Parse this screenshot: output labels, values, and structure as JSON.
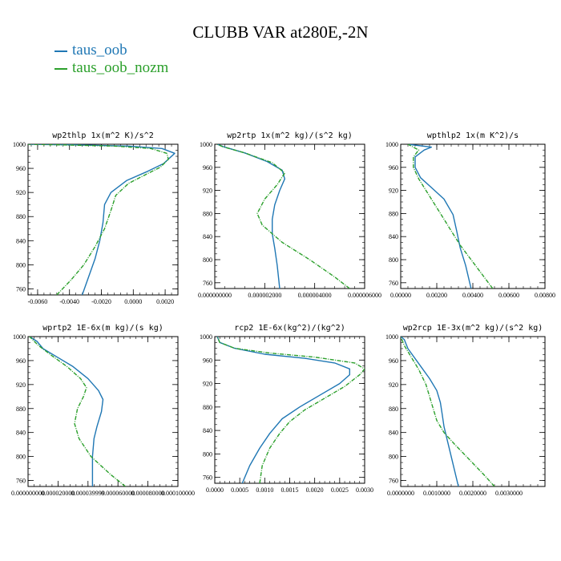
{
  "title": "CLUBB VAR at280E,-2N",
  "legend": [
    {
      "label": "taus_oob",
      "color": "#1f77b4"
    },
    {
      "label": "taus_oob_nozm",
      "color": "#2ca02c"
    }
  ],
  "chart_data": [
    {
      "type": "line",
      "title": "wp2thlp   1x(m^2 K)/s^2",
      "xlim": [
        -0.0066,
        0.0028
      ],
      "ylim": [
        1000,
        750
      ],
      "xticks": [
        "-0.0060",
        "-0.0040",
        "-0.0020",
        "0.0000",
        "0.0020"
      ],
      "xtick_values": [
        -0.006,
        -0.004,
        -0.002,
        0,
        0.002
      ],
      "yticks": [
        "760",
        "800",
        "840",
        "880",
        "920",
        "960",
        "1000"
      ],
      "ytick_values": [
        760,
        800,
        840,
        880,
        920,
        960,
        1000
      ],
      "series": [
        {
          "name": "taus_oob",
          "color": "#1f77b4",
          "dashed": false,
          "points": [
            [
              -0.0032,
              750
            ],
            [
              -0.0028,
              780
            ],
            [
              -0.0024,
              810
            ],
            [
              -0.0021,
              840
            ],
            [
              -0.0019,
              870
            ],
            [
              -0.0018,
              900
            ],
            [
              -0.0014,
              920
            ],
            [
              -0.0004,
              940
            ],
            [
              0.0009,
              955
            ],
            [
              0.0019,
              968
            ],
            [
              0.0026,
              985
            ],
            [
              0.0018,
              993
            ],
            [
              -0.0003,
              997
            ],
            [
              -0.0035,
              999
            ],
            [
              -0.0066,
              1000
            ]
          ]
        },
        {
          "name": "taus_oob_nozm",
          "color": "#2ca02c",
          "dashed": true,
          "points": [
            [
              -0.0048,
              750
            ],
            [
              -0.0039,
              775
            ],
            [
              -0.0031,
              800
            ],
            [
              -0.0024,
              830
            ],
            [
              -0.0018,
              860
            ],
            [
              -0.0014,
              890
            ],
            [
              -0.0011,
              915
            ],
            [
              -0.0003,
              935
            ],
            [
              0.0008,
              950
            ],
            [
              0.0017,
              962
            ],
            [
              0.0022,
              975
            ],
            [
              0.0021,
              985
            ],
            [
              0.0011,
              993
            ],
            [
              -0.0012,
              997
            ],
            [
              -0.0045,
              999
            ],
            [
              -0.0066,
              1000
            ]
          ]
        }
      ]
    },
    {
      "type": "line",
      "title": "wp2rtp   1x(m^2 kg)/(s^2 kg)",
      "xlim": [
        0,
        6e-06
      ],
      "ylim": [
        1000,
        750
      ],
      "xticks": [
        "0.000000000",
        "0.000002000",
        "0.000004000",
        "0.000006000"
      ],
      "xtick_values": [
        0,
        2e-06,
        4e-06,
        6e-06
      ],
      "yticks": [
        "760",
        "800",
        "840",
        "880",
        "920",
        "960",
        "1000"
      ],
      "ytick_values": [
        760,
        800,
        840,
        880,
        920,
        960,
        1000
      ],
      "series": [
        {
          "name": "taus_oob",
          "color": "#1f77b4",
          "dashed": false,
          "points": [
            [
              2.6e-06,
              750
            ],
            [
              2.5e-06,
              790
            ],
            [
              2.4e-06,
              820
            ],
            [
              2.3e-06,
              845
            ],
            [
              2.3e-06,
              870
            ],
            [
              2.4e-06,
              895
            ],
            [
              2.6e-06,
              920
            ],
            [
              2.8e-06,
              940
            ],
            [
              2.7e-06,
              955
            ],
            [
              2.1e-06,
              970
            ],
            [
              1.2e-06,
              985
            ],
            [
              4e-07,
              995
            ],
            [
              1e-07,
              1000
            ]
          ]
        },
        {
          "name": "taus_oob_nozm",
          "color": "#2ca02c",
          "dashed": true,
          "points": [
            [
              5.4e-06,
              750
            ],
            [
              4.8e-06,
              770
            ],
            [
              3.8e-06,
              800
            ],
            [
              2.7e-06,
              830
            ],
            [
              1.9e-06,
              860
            ],
            [
              1.7e-06,
              880
            ],
            [
              2e-06,
              905
            ],
            [
              2.5e-06,
              930
            ],
            [
              2.8e-06,
              950
            ],
            [
              2.3e-06,
              968
            ],
            [
              1.2e-06,
              985
            ],
            [
              3e-07,
              996
            ],
            [
              1e-07,
              1000
            ]
          ]
        }
      ]
    },
    {
      "type": "line",
      "title": "wpthlp2   1x(m K^2)/s",
      "xlim": [
        0,
        0.008
      ],
      "ylim": [
        1000,
        750
      ],
      "xticks": [
        "0.00000",
        "0.00200",
        "0.00400",
        "0.00600",
        "0.00800"
      ],
      "xtick_values": [
        0,
        0.002,
        0.004,
        0.006,
        0.008
      ],
      "yticks": [
        "760",
        "800",
        "840",
        "880",
        "920",
        "960",
        "1000"
      ],
      "ytick_values": [
        760,
        800,
        840,
        880,
        920,
        960,
        1000
      ],
      "series": [
        {
          "name": "taus_oob",
          "color": "#1f77b4",
          "dashed": false,
          "points": [
            [
              0.0039,
              750
            ],
            [
              0.0036,
              790
            ],
            [
              0.0033,
              820
            ],
            [
              0.0031,
              850
            ],
            [
              0.0029,
              878
            ],
            [
              0.0024,
              905
            ],
            [
              0.0017,
              925
            ],
            [
              0.0011,
              942
            ],
            [
              0.0008,
              960
            ],
            [
              0.0008,
              978
            ],
            [
              0.0013,
              990
            ],
            [
              0.0017,
              995
            ],
            [
              0.0004,
              1000
            ]
          ]
        },
        {
          "name": "taus_oob_nozm",
          "color": "#2ca02c",
          "dashed": true,
          "points": [
            [
              0.0051,
              750
            ],
            [
              0.0045,
              775
            ],
            [
              0.0039,
              800
            ],
            [
              0.0033,
              825
            ],
            [
              0.0028,
              850
            ],
            [
              0.0023,
              875
            ],
            [
              0.0018,
              900
            ],
            [
              0.0014,
              920
            ],
            [
              0.001,
              940
            ],
            [
              0.0007,
              960
            ],
            [
              0.0007,
              978
            ],
            [
              0.001,
              990
            ],
            [
              0.0004,
              1000
            ]
          ]
        }
      ]
    },
    {
      "type": "line",
      "title": "wprtp2   1E-6x(m kg)/(s kg)",
      "xlim": [
        0,
        0.0001
      ],
      "ylim": [
        1000,
        750
      ],
      "xticks": [
        "0.000000000",
        "0.000020000",
        "0.000039999",
        "0.000060000",
        "0.000080000",
        "0.000100000"
      ],
      "xtick_values": [
        0,
        2e-05,
        4e-05,
        6e-05,
        8e-05,
        0.0001
      ],
      "yticks": [
        "760",
        "800",
        "840",
        "880",
        "920",
        "960",
        "1000"
      ],
      "ytick_values": [
        760,
        800,
        840,
        880,
        920,
        960,
        1000
      ],
      "series": [
        {
          "name": "taus_oob",
          "color": "#1f77b4",
          "dashed": false,
          "points": [
            [
              4.3e-05,
              750
            ],
            [
              4.3e-05,
              800
            ],
            [
              4.4e-05,
              830
            ],
            [
              4.6e-05,
              850
            ],
            [
              4.9e-05,
              875
            ],
            [
              5e-05,
              895
            ],
            [
              4.7e-05,
              910
            ],
            [
              4e-05,
              930
            ],
            [
              3e-05,
              950
            ],
            [
              2e-05,
              965
            ],
            [
              1e-05,
              980
            ],
            [
              6e-06,
              992
            ],
            [
              1e-06,
              1000
            ]
          ]
        },
        {
          "name": "taus_oob_nozm",
          "color": "#2ca02c",
          "dashed": true,
          "points": [
            [
              6.5e-05,
              750
            ],
            [
              5.5e-05,
              770
            ],
            [
              4.2e-05,
              800
            ],
            [
              3.4e-05,
              830
            ],
            [
              3.1e-05,
              855
            ],
            [
              3.3e-05,
              880
            ],
            [
              3.7e-05,
              900
            ],
            [
              3.9e-05,
              915
            ],
            [
              3.5e-05,
              930
            ],
            [
              2.6e-05,
              950
            ],
            [
              1.6e-05,
              968
            ],
            [
              7e-06,
              985
            ],
            [
              1e-06,
              1000
            ]
          ]
        }
      ]
    },
    {
      "type": "line",
      "title": "rcp2   1E-6x(kg^2)/(kg^2)",
      "xlim": [
        0,
        0.003
      ],
      "ylim": [
        1000,
        750
      ],
      "xticks": [
        "0.0000",
        "0.0005",
        "0.0010",
        "0.0015",
        "0.0020",
        "0.0025",
        "0.0030"
      ],
      "xtick_values": [
        0,
        0.0005,
        0.001,
        0.0015,
        0.002,
        0.0025,
        0.003
      ],
      "yticks": [
        "760",
        "800",
        "840",
        "880",
        "920",
        "960",
        "1000"
      ],
      "ytick_values": [
        760,
        800,
        840,
        880,
        920,
        960,
        1000
      ],
      "series": [
        {
          "name": "taus_oob",
          "color": "#1f77b4",
          "dashed": false,
          "points": [
            [
              0.00055,
              750
            ],
            [
              0.0007,
              780
            ],
            [
              0.0009,
              810
            ],
            [
              0.0011,
              835
            ],
            [
              0.00135,
              860
            ],
            [
              0.0017,
              880
            ],
            [
              0.0021,
              900
            ],
            [
              0.0025,
              920
            ],
            [
              0.0027,
              935
            ],
            [
              0.0027,
              945
            ],
            [
              0.0024,
              955
            ],
            [
              0.0018,
              963
            ],
            [
              0.001,
              970
            ],
            [
              0.0004,
              980
            ],
            [
              0.0001,
              990
            ],
            [
              5e-05,
              1000
            ]
          ]
        },
        {
          "name": "taus_oob_nozm",
          "color": "#2ca02c",
          "dashed": true,
          "points": [
            [
              0.0009,
              750
            ],
            [
              0.00095,
              780
            ],
            [
              0.0011,
              810
            ],
            [
              0.0013,
              835
            ],
            [
              0.0015,
              855
            ],
            [
              0.0018,
              875
            ],
            [
              0.0022,
              895
            ],
            [
              0.0026,
              915
            ],
            [
              0.0029,
              935
            ],
            [
              0.003,
              945
            ],
            [
              0.0028,
              955
            ],
            [
              0.002,
              965
            ],
            [
              0.0011,
              972
            ],
            [
              0.0004,
              980
            ],
            [
              0.0001,
              990
            ],
            [
              5e-05,
              1000
            ]
          ]
        }
      ]
    },
    {
      "type": "line",
      "title": "wp2rcp   1E-3x(m^2 kg)/(s^2 kg)",
      "xlim": [
        0,
        0.004
      ],
      "ylim": [
        1000,
        750
      ],
      "xticks": [
        "0.0000000",
        "0.0010000",
        "0.0020000",
        "0.0030000"
      ],
      "xtick_values": [
        0,
        0.001,
        0.002,
        0.003
      ],
      "yticks": [
        "760",
        "800",
        "840",
        "880",
        "920",
        "960",
        "1000"
      ],
      "ytick_values": [
        760,
        800,
        840,
        880,
        920,
        960,
        1000
      ],
      "series": [
        {
          "name": "taus_oob",
          "color": "#1f77b4",
          "dashed": false,
          "points": [
            [
              0.0016,
              750
            ],
            [
              0.0015,
              775
            ],
            [
              0.0014,
              800
            ],
            [
              0.0013,
              825
            ],
            [
              0.0012,
              850
            ],
            [
              0.00115,
              870
            ],
            [
              0.0011,
              890
            ],
            [
              0.001,
              910
            ],
            [
              0.0008,
              930
            ],
            [
              0.0005,
              955
            ],
            [
              0.0002,
              980
            ],
            [
              0.0001,
              995
            ],
            [
              0,
              1000
            ]
          ]
        },
        {
          "name": "taus_oob_nozm",
          "color": "#2ca02c",
          "dashed": true,
          "points": [
            [
              0.0026,
              750
            ],
            [
              0.0023,
              770
            ],
            [
              0.0019,
              795
            ],
            [
              0.0015,
              820
            ],
            [
              0.0012,
              840
            ],
            [
              0.001,
              860
            ],
            [
              0.0009,
              880
            ],
            [
              0.0008,
              900
            ],
            [
              0.0007,
              920
            ],
            [
              0.0005,
              945
            ],
            [
              0.0003,
              965
            ],
            [
              0.0001,
              985
            ],
            [
              0,
              1000
            ]
          ]
        }
      ]
    }
  ]
}
